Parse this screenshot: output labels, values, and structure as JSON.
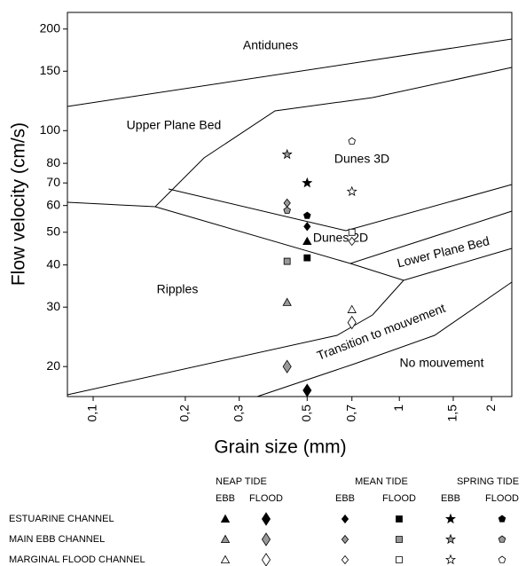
{
  "chart_data": {
    "type": "scatter",
    "xlabel": "Grain size (mm)",
    "ylabel": "Flow velocity (cm/s)",
    "log_x": true,
    "log_y": true,
    "xlim": [
      0.0824,
      2.33
    ],
    "ylim": [
      16.3,
      224
    ],
    "xticks": [
      {
        "value": 0.1,
        "label": "0,1"
      },
      {
        "value": 0.2,
        "label": "0,2"
      },
      {
        "value": 0.3,
        "label": "0,3"
      },
      {
        "value": 0.5,
        "label": "0,5"
      },
      {
        "value": 0.7,
        "label": "0,7"
      },
      {
        "value": 1,
        "label": "1"
      },
      {
        "value": 1.5,
        "label": "1,5"
      },
      {
        "value": 2,
        "label": "2"
      }
    ],
    "yticks": [
      20,
      30,
      40,
      50,
      60,
      70,
      80,
      100,
      150,
      200
    ],
    "regions": [
      "Antidunes",
      "Upper Plane Bed",
      "Dunes 3D",
      "Dunes 2D",
      "Lower Plane Bed",
      "Ripples",
      "Transition to mouvement",
      "No mouvement"
    ],
    "legend": {
      "groups": [
        "NEAP TIDE",
        "MEAN TIDE",
        "SPRING TIDE"
      ],
      "phases": [
        "EBB",
        "FLOOD",
        "EBB",
        "FLOOD",
        "EBB",
        "FLOOD"
      ]
    },
    "markers": [
      "triangle",
      "big-diamond",
      "diamond",
      "square",
      "star",
      "pentagon"
    ],
    "series": [
      {
        "name": "ESTUARINE CHANNEL",
        "color": "#000000",
        "x": [
          0.5,
          0.5,
          0.5,
          0.5,
          0.5,
          0.5
        ],
        "values": [
          47,
          17,
          52,
          42,
          70,
          56
        ]
      },
      {
        "name": "MAIN EBB CHANNEL",
        "color": "#999999",
        "x": [
          0.43,
          0.43,
          0.43,
          0.43,
          0.43,
          0.43
        ],
        "values": [
          31,
          20,
          61,
          41,
          85,
          58
        ]
      },
      {
        "name": "MARGINAL FLOOD CHANNEL",
        "color": "#ffffff",
        "x": [
          0.7,
          0.7,
          0.7,
          0.7,
          0.7,
          0.7
        ],
        "values": [
          29.5,
          27,
          47,
          50,
          66,
          93
        ]
      }
    ]
  }
}
